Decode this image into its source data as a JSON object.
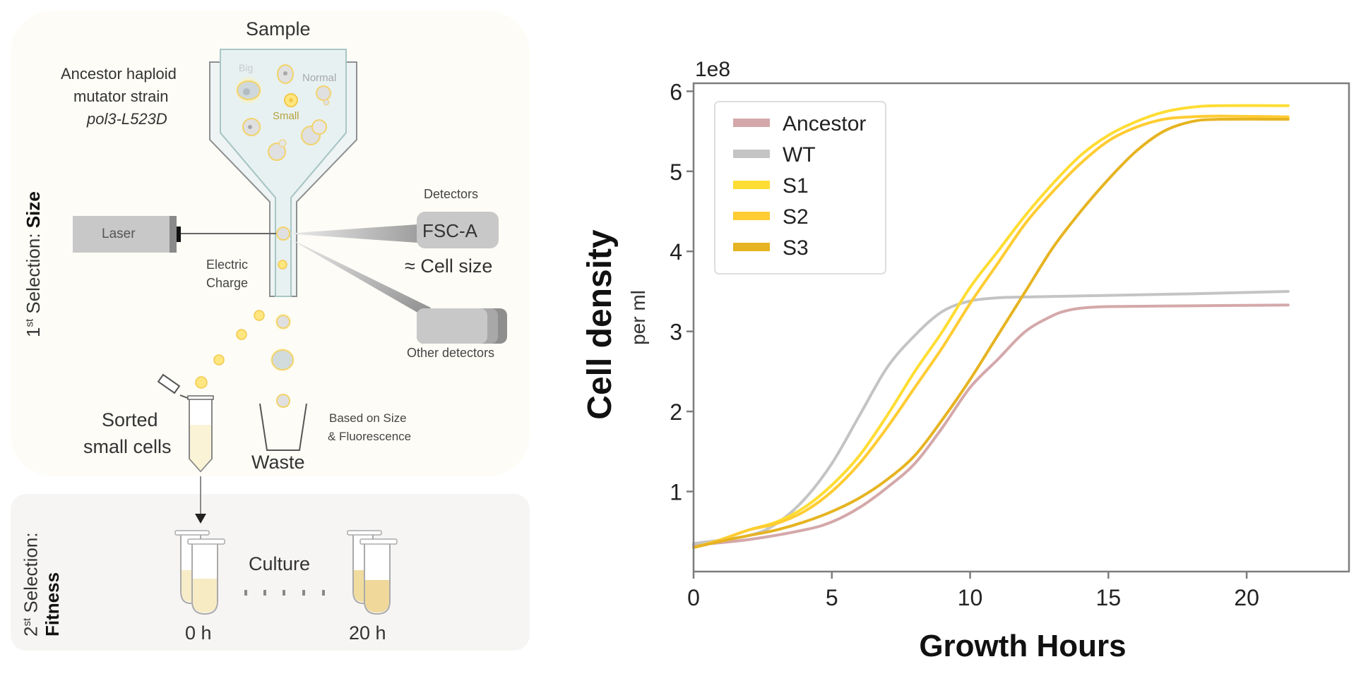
{
  "diagram": {
    "sample_label": "Sample",
    "strain_line1": "Ancestor haploid",
    "strain_line2": "mutator strain",
    "strain_line3": "pol3-L523D",
    "cell_labels": {
      "big": "Big",
      "normal": "Normal",
      "small": "Small"
    },
    "laser_label": "Laser",
    "electric_charge_line1": "Electric",
    "electric_charge_line2": "Charge",
    "detectors_label": "Detectors",
    "fsc_label": "FSC-A",
    "cell_size_label": "≈ Cell size",
    "other_detectors_label": "Other detectors",
    "sorted_line1": "Sorted",
    "sorted_line2": "small cells",
    "waste_label": "Waste",
    "based_on_line1": "Based on Size",
    "based_on_line2": "& Fluorescence",
    "culture_label": "Culture",
    "time_start": "0 h",
    "time_end": "20 h",
    "selection1": {
      "prefix": "1",
      "sup": "st",
      "text": " Selection: ",
      "bold": "Size"
    },
    "selection2": {
      "prefix": "2",
      "sup": "st",
      "text": " Selection:",
      "bold": "Fitness"
    }
  },
  "chart_data": {
    "type": "line",
    "title": "",
    "xlabel": "Growth Hours",
    "ylabel": "Cell density",
    "ylabel_sub": "per ml",
    "y_multiplier": "1e8",
    "xlim": [
      0,
      23.7
    ],
    "ylim": [
      0,
      6.1
    ],
    "xticks": [
      0,
      5,
      10,
      15,
      20
    ],
    "yticks": [
      1,
      2,
      3,
      4,
      5,
      6
    ],
    "grid": false,
    "legend_position": "top-left",
    "series": [
      {
        "name": "Ancestor",
        "color": "#d4a8aa",
        "x": [
          0,
          2,
          4,
          5,
          6,
          7,
          8,
          9,
          10,
          11,
          12,
          13,
          13.5,
          14,
          15,
          18,
          21.5
        ],
        "y": [
          0.33,
          0.4,
          0.52,
          0.62,
          0.8,
          1.05,
          1.35,
          1.8,
          2.3,
          2.65,
          3.0,
          3.2,
          3.26,
          3.29,
          3.31,
          3.32,
          3.33
        ]
      },
      {
        "name": "WT",
        "color": "#c4c4c4",
        "x": [
          0,
          2,
          3,
          4,
          5,
          6,
          7,
          8,
          9,
          10,
          11,
          12,
          15,
          18,
          21.5
        ],
        "y": [
          0.35,
          0.45,
          0.6,
          0.9,
          1.35,
          1.95,
          2.55,
          2.95,
          3.25,
          3.38,
          3.42,
          3.43,
          3.45,
          3.47,
          3.5
        ]
      },
      {
        "name": "S1",
        "color": "#ffdd33",
        "x": [
          0,
          1,
          2,
          3,
          4,
          5,
          6,
          7,
          8,
          9,
          10,
          11,
          12,
          13,
          14,
          15,
          16,
          17,
          18,
          19,
          21.5
        ],
        "y": [
          0.3,
          0.4,
          0.52,
          0.62,
          0.8,
          1.08,
          1.45,
          1.95,
          2.5,
          3.0,
          3.55,
          4.0,
          4.45,
          4.85,
          5.2,
          5.45,
          5.62,
          5.74,
          5.8,
          5.82,
          5.82
        ]
      },
      {
        "name": "S2",
        "color": "#ffcc33",
        "x": [
          0,
          1,
          2,
          3,
          4,
          5,
          6,
          7,
          8,
          9,
          10,
          11,
          12,
          13,
          14,
          15,
          16,
          17,
          18,
          19,
          21.5
        ],
        "y": [
          0.3,
          0.4,
          0.52,
          0.6,
          0.75,
          1.0,
          1.35,
          1.8,
          2.3,
          2.8,
          3.35,
          3.85,
          4.35,
          4.75,
          5.1,
          5.38,
          5.55,
          5.65,
          5.68,
          5.69,
          5.68
        ]
      },
      {
        "name": "S3",
        "color": "#e6b422",
        "x": [
          0,
          1,
          2,
          3,
          4,
          5,
          6,
          7,
          8,
          9,
          10,
          11,
          12,
          13,
          14,
          15,
          16,
          17,
          18,
          19,
          21.5
        ],
        "y": [
          0.3,
          0.38,
          0.45,
          0.52,
          0.62,
          0.75,
          0.92,
          1.15,
          1.45,
          1.9,
          2.4,
          2.95,
          3.5,
          4.05,
          4.5,
          4.9,
          5.25,
          5.5,
          5.62,
          5.65,
          5.65
        ]
      }
    ]
  }
}
